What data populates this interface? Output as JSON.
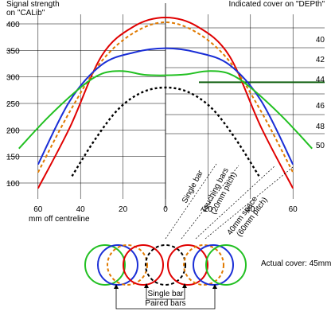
{
  "chart_data": {
    "type": "line",
    "left_axis_title_line1": "Signal strength",
    "left_axis_title_line2": "on \"CALib\"",
    "right_axis_title": "Indicated cover on \"DEPth\"",
    "x_axis_title": "mm off centreline",
    "y_left_ticks": [
      "400",
      "350",
      "300",
      "250",
      "200",
      "150",
      "100"
    ],
    "y_right_ticks": [
      "40",
      "42",
      "44",
      "46",
      "48",
      "50"
    ],
    "x_ticks": [
      "60",
      "40",
      "20",
      "0",
      "20",
      "40",
      "60"
    ],
    "x_range": [
      -70,
      70
    ],
    "y_range": [
      80,
      420
    ],
    "series": [
      {
        "color": "#e00000",
        "style": "solid",
        "x": [
          -60,
          -45,
          -30,
          -15,
          0,
          15,
          30,
          45,
          60
        ],
        "y": [
          90,
          205,
          340,
          395,
          412,
          395,
          340,
          205,
          90
        ]
      },
      {
        "color": "#e07a00",
        "style": "dashed",
        "x": [
          -60,
          -45,
          -30,
          -15,
          0,
          15,
          30,
          45,
          60
        ],
        "y": [
          120,
          235,
          330,
          383,
          403,
          383,
          330,
          235,
          120
        ]
      },
      {
        "color": "#1a2ed6",
        "style": "solid",
        "x": [
          -60,
          -45,
          -30,
          -15,
          0,
          15,
          30,
          45,
          60
        ],
        "y": [
          135,
          255,
          323,
          346,
          354,
          346,
          323,
          255,
          135
        ]
      },
      {
        "color": "#22c022",
        "style": "solid",
        "x": [
          -69,
          -55,
          -40,
          -30,
          -20,
          -10,
          0,
          10,
          20,
          30,
          40,
          55,
          69
        ],
        "y": [
          165,
          225,
          280,
          306,
          311,
          304,
          303,
          305,
          311,
          306,
          280,
          225,
          165
        ]
      },
      {
        "color": "#000000",
        "style": "dotted",
        "x": [
          -44,
          -33,
          -22,
          -11,
          0,
          11,
          22,
          33,
          44
        ],
        "y": [
          113,
          183,
          240,
          271,
          280,
          271,
          240,
          183,
          113
        ]
      }
    ],
    "threshold_line": {
      "color": "#106010",
      "y": 290
    },
    "annotations": [
      {
        "text": "Single bar"
      },
      {
        "text": "Touching bars"
      },
      {
        "text": "(20mm pitch)"
      },
      {
        "text": "40mm space"
      },
      {
        "text": "(60mm pitch)"
      }
    ],
    "diagram": {
      "cover_label": "Actual cover: 45mm",
      "single_bar_label": "Single bar",
      "paired_bars_label": "Paired bars",
      "circles": [
        {
          "color": "#22c022",
          "style": "solid"
        },
        {
          "color": "#1a2ed6",
          "style": "solid"
        },
        {
          "color": "#e07a00",
          "style": "dashed"
        },
        {
          "color": "#e00000",
          "style": "solid"
        },
        {
          "color": "#000000",
          "style": "dashed"
        },
        {
          "color": "#e00000",
          "style": "solid"
        },
        {
          "color": "#e07a00",
          "style": "dashed"
        },
        {
          "color": "#1a2ed6",
          "style": "solid"
        },
        {
          "color": "#22c022",
          "style": "solid"
        }
      ]
    }
  }
}
